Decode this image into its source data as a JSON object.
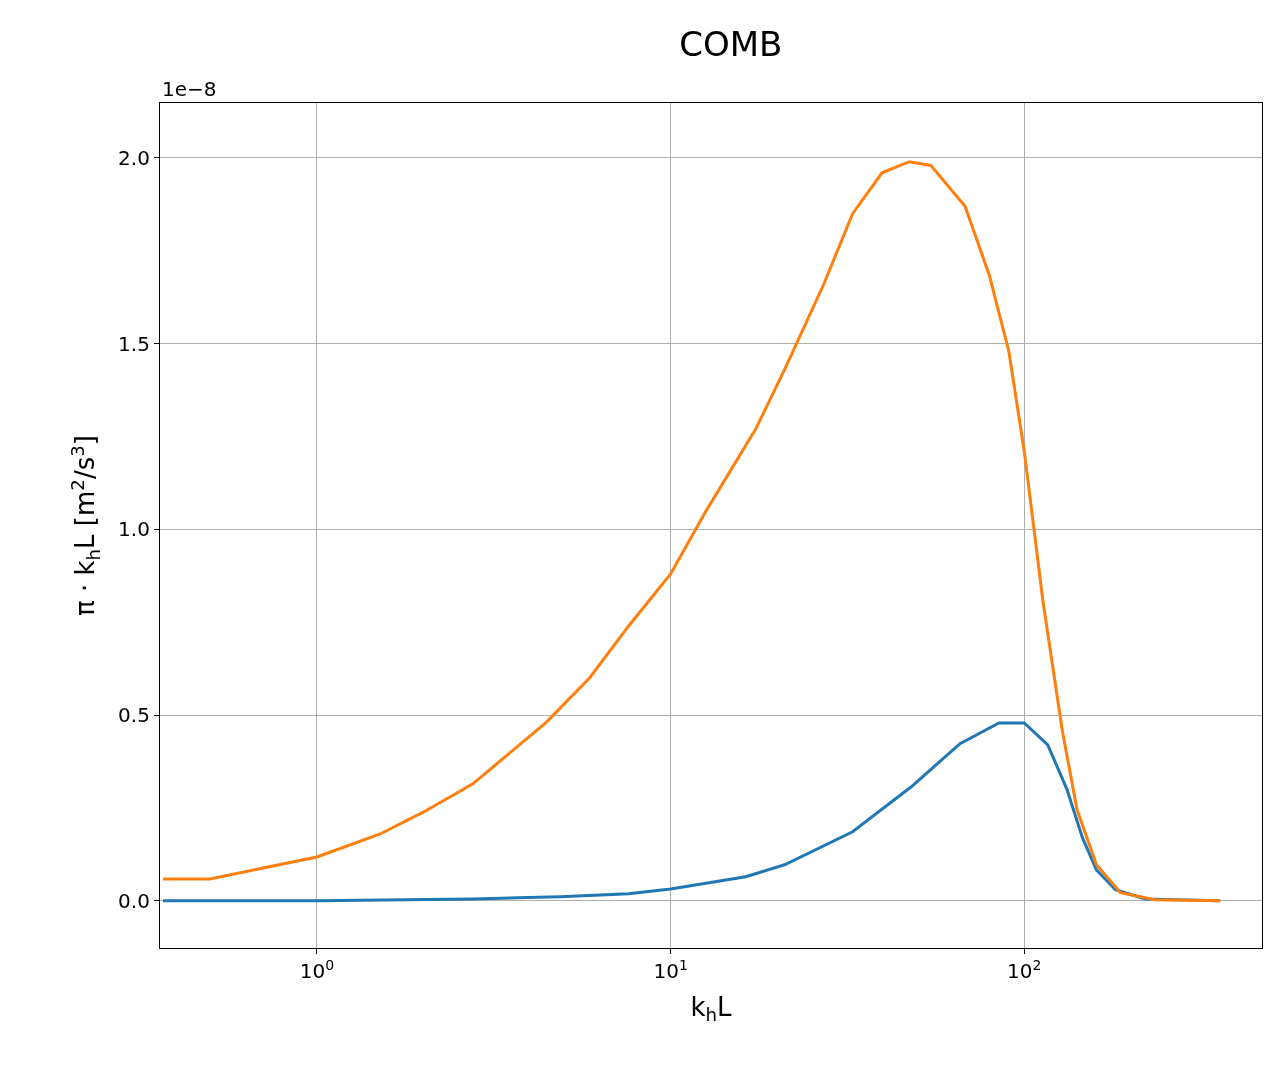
{
  "chart_data": {
    "type": "line",
    "title": "COMB",
    "xlabel": "k$_{h}$L",
    "ylabel": "π · k$_{h}$L [m$^{2}$/s$^{3}$]",
    "annotations": [
      "1e−8"
    ],
    "log": "x",
    "grid": true,
    "xlim": [
      0.36,
      470
    ],
    "ylim": [
      -0.127,
      2.148
    ],
    "xticks": [
      {
        "value": 1,
        "label": "10$^{0}$"
      },
      {
        "value": 10,
        "label": "10$^{1}$"
      },
      {
        "value": 100,
        "label": "10$^{2}$"
      }
    ],
    "yticks": [
      {
        "value": 0,
        "label": "0.0"
      },
      {
        "value": 0.5,
        "label": "0.5"
      },
      {
        "value": 1,
        "label": "1.0"
      },
      {
        "value": 1.5,
        "label": "1.5"
      },
      {
        "value": 2,
        "label": "2.0"
      }
    ],
    "series": [
      {
        "color": "#1f77b4",
        "x": [
          0.367,
          1,
          2.76,
          4.87,
          7.61,
          10,
          16.3,
          21,
          32.7,
          47.9,
          65.8,
          84.8,
          100,
          116.5,
          132,
          146,
          160,
          181,
          220,
          358
        ],
        "values": [
          0,
          0,
          0.005,
          0.011,
          0.019,
          0.032,
          0.065,
          0.097,
          0.186,
          0.307,
          0.423,
          0.479,
          0.479,
          0.42,
          0.3,
          0.17,
          0.083,
          0.03,
          0.005,
          0
        ]
      },
      {
        "color": "#ff7f0e",
        "x": [
          0.367,
          0.498,
          1,
          1.51,
          2.01,
          2.76,
          4.44,
          5.9,
          7.61,
          10,
          12.6,
          17.4,
          21,
          27.1,
          32.7,
          39.6,
          47.3,
          54.4,
          68,
          79.6,
          90.4,
          100,
          112.8,
          128,
          141,
          160,
          187,
          234,
          358
        ],
        "values": [
          0.059,
          0.059,
          0.118,
          0.18,
          0.24,
          0.315,
          0.48,
          0.6,
          0.74,
          0.88,
          1.05,
          1.27,
          1.43,
          1.66,
          1.85,
          1.96,
          1.99,
          1.98,
          1.87,
          1.685,
          1.48,
          1.21,
          0.81,
          0.46,
          0.245,
          0.097,
          0.022,
          0.003,
          0
        ]
      }
    ]
  }
}
